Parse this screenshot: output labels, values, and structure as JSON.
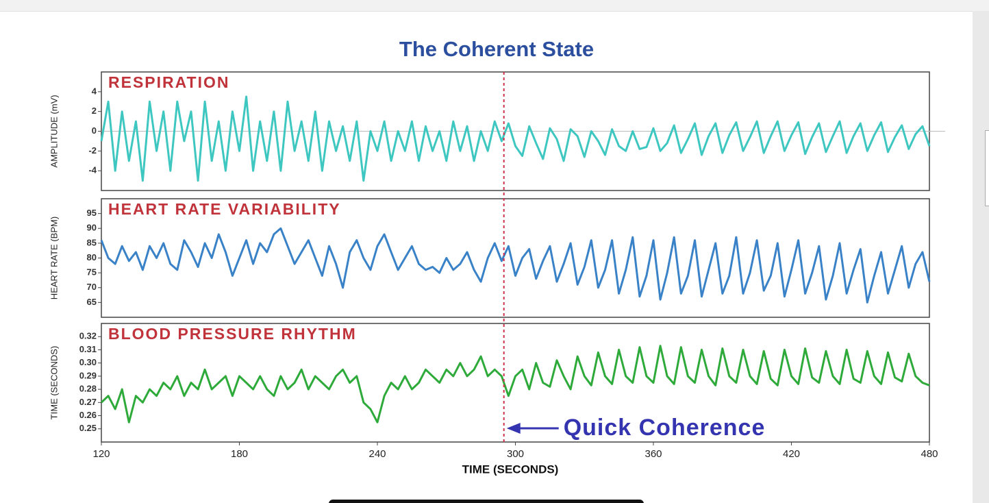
{
  "title": "The Coherent State",
  "xlabel": "TIME (SECONDS)",
  "xlim": [
    120,
    480
  ],
  "xticks": [
    120,
    180,
    240,
    300,
    360,
    420,
    480
  ],
  "annotation": {
    "text": "Quick Coherence",
    "x": 295
  },
  "x": [
    120,
    123,
    126,
    129,
    132,
    135,
    138,
    141,
    144,
    147,
    150,
    153,
    156,
    159,
    162,
    165,
    168,
    171,
    174,
    177,
    180,
    183,
    186,
    189,
    192,
    195,
    198,
    201,
    204,
    207,
    210,
    213,
    216,
    219,
    222,
    225,
    228,
    231,
    234,
    237,
    240,
    243,
    246,
    249,
    252,
    255,
    258,
    261,
    264,
    267,
    270,
    273,
    276,
    279,
    282,
    285,
    288,
    291,
    294,
    297,
    300,
    303,
    306,
    309,
    312,
    315,
    318,
    321,
    324,
    327,
    330,
    333,
    336,
    339,
    342,
    345,
    348,
    351,
    354,
    357,
    360,
    363,
    366,
    369,
    372,
    375,
    378,
    381,
    384,
    387,
    390,
    393,
    396,
    399,
    402,
    405,
    408,
    411,
    414,
    417,
    420,
    423,
    426,
    429,
    432,
    435,
    438,
    441,
    444,
    447,
    450,
    453,
    456,
    459,
    462,
    465,
    468,
    471,
    474,
    477,
    480
  ],
  "chart_data": [
    {
      "type": "line",
      "title": "RESPIRATION",
      "ylabel": "AMPLITUDE (mV)",
      "ylim": [
        -6,
        6
      ],
      "yticks": [
        -4,
        -2,
        0,
        2,
        4
      ],
      "series": [
        {
          "name": "RESPIRATION",
          "color": "#3ec7c0",
          "values": [
            -1,
            3,
            -4,
            2,
            -3,
            1,
            -5,
            3,
            -2,
            2,
            -4,
            3,
            -1,
            2,
            -5,
            3,
            -3,
            1,
            -4,
            2,
            -2,
            3.5,
            -4,
            1,
            -3,
            2,
            -4,
            3,
            -2,
            1,
            -3,
            2,
            -4,
            1,
            -2,
            0.5,
            -3,
            1,
            -5,
            0,
            -2,
            1,
            -3,
            0,
            -2,
            1,
            -3,
            0.5,
            -2,
            0,
            -3,
            1,
            -2,
            0.5,
            -3,
            0,
            -2,
            1,
            -1,
            0.8,
            -1.5,
            -2.5,
            0.5,
            -1.2,
            -2.8,
            0.3,
            -0.8,
            -3,
            0.2,
            -0.5,
            -2.6,
            0,
            -1,
            -2.4,
            0.2,
            -1.5,
            -2,
            0,
            -1.8,
            -1.6,
            0.3,
            -2,
            -1.2,
            0.6,
            -2.2,
            -0.8,
            0.8,
            -2.4,
            -0.5,
            0.8,
            -2.2,
            -0.4,
            0.9,
            -2,
            -0.6,
            1,
            -2.2,
            -0.5,
            1,
            -2,
            -0.4,
            0.9,
            -2.3,
            -0.6,
            0.8,
            -2.1,
            -0.5,
            1,
            -2.2,
            -0.5,
            0.8,
            -2,
            -0.4,
            0.9,
            -2.1,
            -0.6,
            0.6,
            -1.8,
            -0.3,
            0.5,
            -1.5
          ]
        }
      ]
    },
    {
      "type": "line",
      "title": "HEART RATE VARIABILITY",
      "ylabel": "HEART RATE (BPM)",
      "ylim": [
        60,
        100
      ],
      "yticks": [
        65,
        70,
        75,
        80,
        85,
        90,
        95
      ],
      "series": [
        {
          "name": "HEART RATE VARIABILITY",
          "color": "#3a82c8",
          "values": [
            86,
            80,
            78,
            84,
            79,
            82,
            76,
            84,
            80,
            85,
            78,
            76,
            86,
            82,
            77,
            85,
            80,
            88,
            82,
            74,
            80,
            86,
            78,
            85,
            82,
            88,
            90,
            84,
            78,
            82,
            86,
            80,
            74,
            84,
            78,
            70,
            82,
            86,
            80,
            76,
            84,
            88,
            82,
            76,
            80,
            84,
            78,
            76,
            77,
            75,
            80,
            76,
            78,
            82,
            76,
            72,
            80,
            85,
            79,
            84,
            74,
            80,
            83,
            73,
            79,
            84,
            72,
            78,
            85,
            71,
            77,
            86,
            70,
            76,
            86,
            68,
            76,
            87,
            67,
            74,
            86,
            66,
            75,
            87,
            68,
            74,
            86,
            67,
            76,
            85,
            68,
            74,
            87,
            68,
            75,
            86,
            69,
            74,
            85,
            67,
            76,
            86,
            68,
            75,
            84,
            66,
            74,
            85,
            68,
            76,
            83,
            65,
            74,
            82,
            68,
            76,
            84,
            70,
            78,
            82,
            72
          ]
        }
      ]
    },
    {
      "type": "line",
      "title": "BLOOD PRESSURE RHYTHM",
      "ylabel": "TIME (SECONDS)",
      "ylim": [
        0.24,
        0.33
      ],
      "yticks": [
        0.25,
        0.26,
        0.27,
        0.28,
        0.29,
        {
          "value": 0.3,
          "label": "0.30"
        },
        0.31,
        0.32
      ],
      "series": [
        {
          "name": "BLOOD PRESSURE RHYTHM",
          "color": "#2eaa3a",
          "values": [
            0.27,
            0.275,
            0.265,
            0.28,
            0.255,
            0.275,
            0.27,
            0.28,
            0.275,
            0.285,
            0.28,
            0.29,
            0.275,
            0.285,
            0.28,
            0.295,
            0.28,
            0.285,
            0.29,
            0.275,
            0.29,
            0.285,
            0.28,
            0.29,
            0.28,
            0.275,
            0.29,
            0.28,
            0.285,
            0.295,
            0.28,
            0.29,
            0.285,
            0.28,
            0.29,
            0.295,
            0.285,
            0.29,
            0.27,
            0.265,
            0.255,
            0.275,
            0.285,
            0.28,
            0.29,
            0.28,
            0.285,
            0.295,
            0.29,
            0.285,
            0.295,
            0.29,
            0.3,
            0.29,
            0.295,
            0.305,
            0.29,
            0.295,
            0.29,
            0.275,
            0.29,
            0.295,
            0.28,
            0.3,
            0.285,
            0.282,
            0.302,
            0.29,
            0.28,
            0.305,
            0.29,
            0.283,
            0.308,
            0.29,
            0.284,
            0.31,
            0.29,
            0.285,
            0.312,
            0.29,
            0.285,
            0.313,
            0.29,
            0.284,
            0.312,
            0.29,
            0.285,
            0.31,
            0.29,
            0.283,
            0.311,
            0.29,
            0.285,
            0.31,
            0.29,
            0.284,
            0.309,
            0.288,
            0.283,
            0.31,
            0.29,
            0.284,
            0.311,
            0.289,
            0.285,
            0.309,
            0.29,
            0.284,
            0.31,
            0.288,
            0.285,
            0.309,
            0.29,
            0.284,
            0.308,
            0.289,
            0.286,
            0.307,
            0.29,
            0.285,
            0.283
          ]
        }
      ]
    }
  ]
}
